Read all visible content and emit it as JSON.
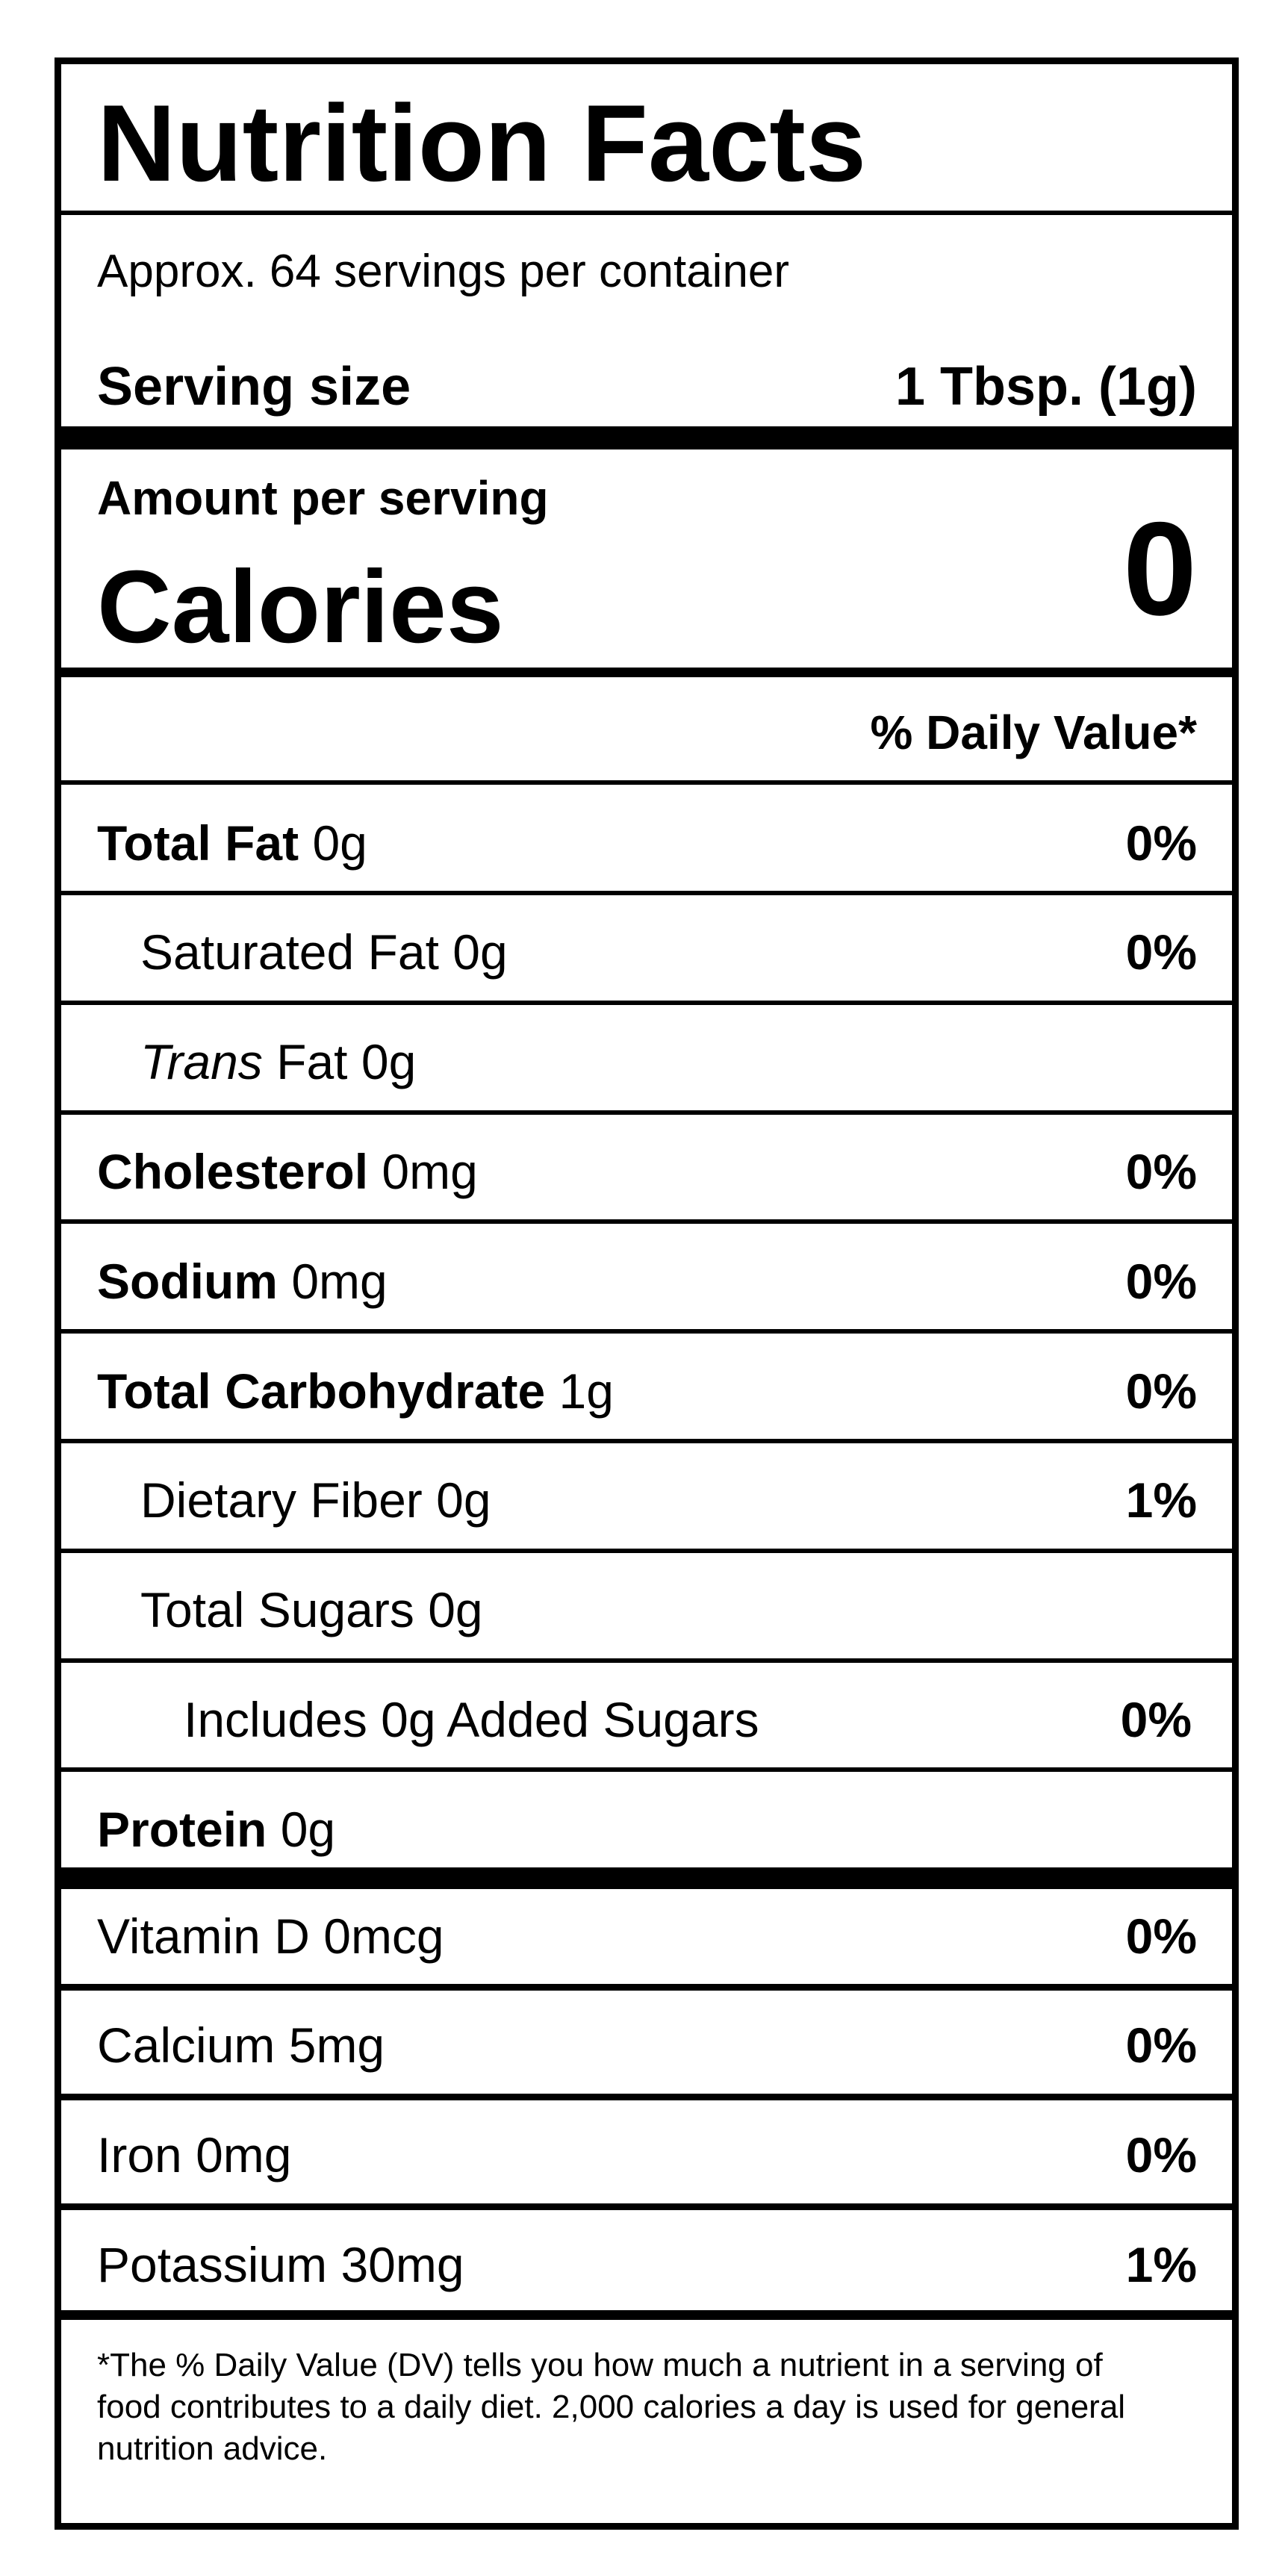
{
  "header": {
    "title": "Nutrition Facts",
    "servings": "Approx. 64 servings per container",
    "serving_size_label": "Serving size",
    "serving_size": "1 Tbsp. (1g)"
  },
  "calories": {
    "amount_label": "Amount per serving",
    "label": "Calories",
    "value": "0"
  },
  "daily_value_header": "% Daily Value*",
  "nutrients": [
    {
      "name": "Total Fat",
      "amount": "0g",
      "dv": "0%"
    },
    {
      "name": "Saturated Fat",
      "amount": "0g",
      "dv": "0%"
    },
    {
      "name": "Trans",
      "name_rest": "Fat",
      "amount": "0g"
    },
    {
      "name": "Cholesterol",
      "amount": "0mg",
      "dv": "0%"
    },
    {
      "name": "Sodium",
      "amount": "0mg",
      "dv": "0%"
    },
    {
      "name": "Total Carbohydrate",
      "amount": "1g",
      "dv": "0%"
    },
    {
      "name": "Dietary Fiber",
      "amount": "0g",
      "dv": "1%"
    },
    {
      "name": "Total Sugars",
      "amount": "0g"
    },
    {
      "name": "Includes 0g Added Sugars",
      "dv": "0%"
    },
    {
      "name": "Protein",
      "amount": "0g"
    }
  ],
  "vitamins": [
    {
      "name": "Vitamin D",
      "amount": "0mcg",
      "dv": "0%"
    },
    {
      "name": "Calcium",
      "amount": "5mg",
      "dv": "0%"
    },
    {
      "name": "Iron",
      "amount": "0mg",
      "dv": "0%"
    },
    {
      "name": "Potassium",
      "amount": "30mg",
      "dv": "1%"
    }
  ],
  "footnote": "*The % Daily Value (DV) tells you how much a nutrient in a serving of food contributes to a daily diet. 2,000 calories a day is used for general nutrition advice."
}
